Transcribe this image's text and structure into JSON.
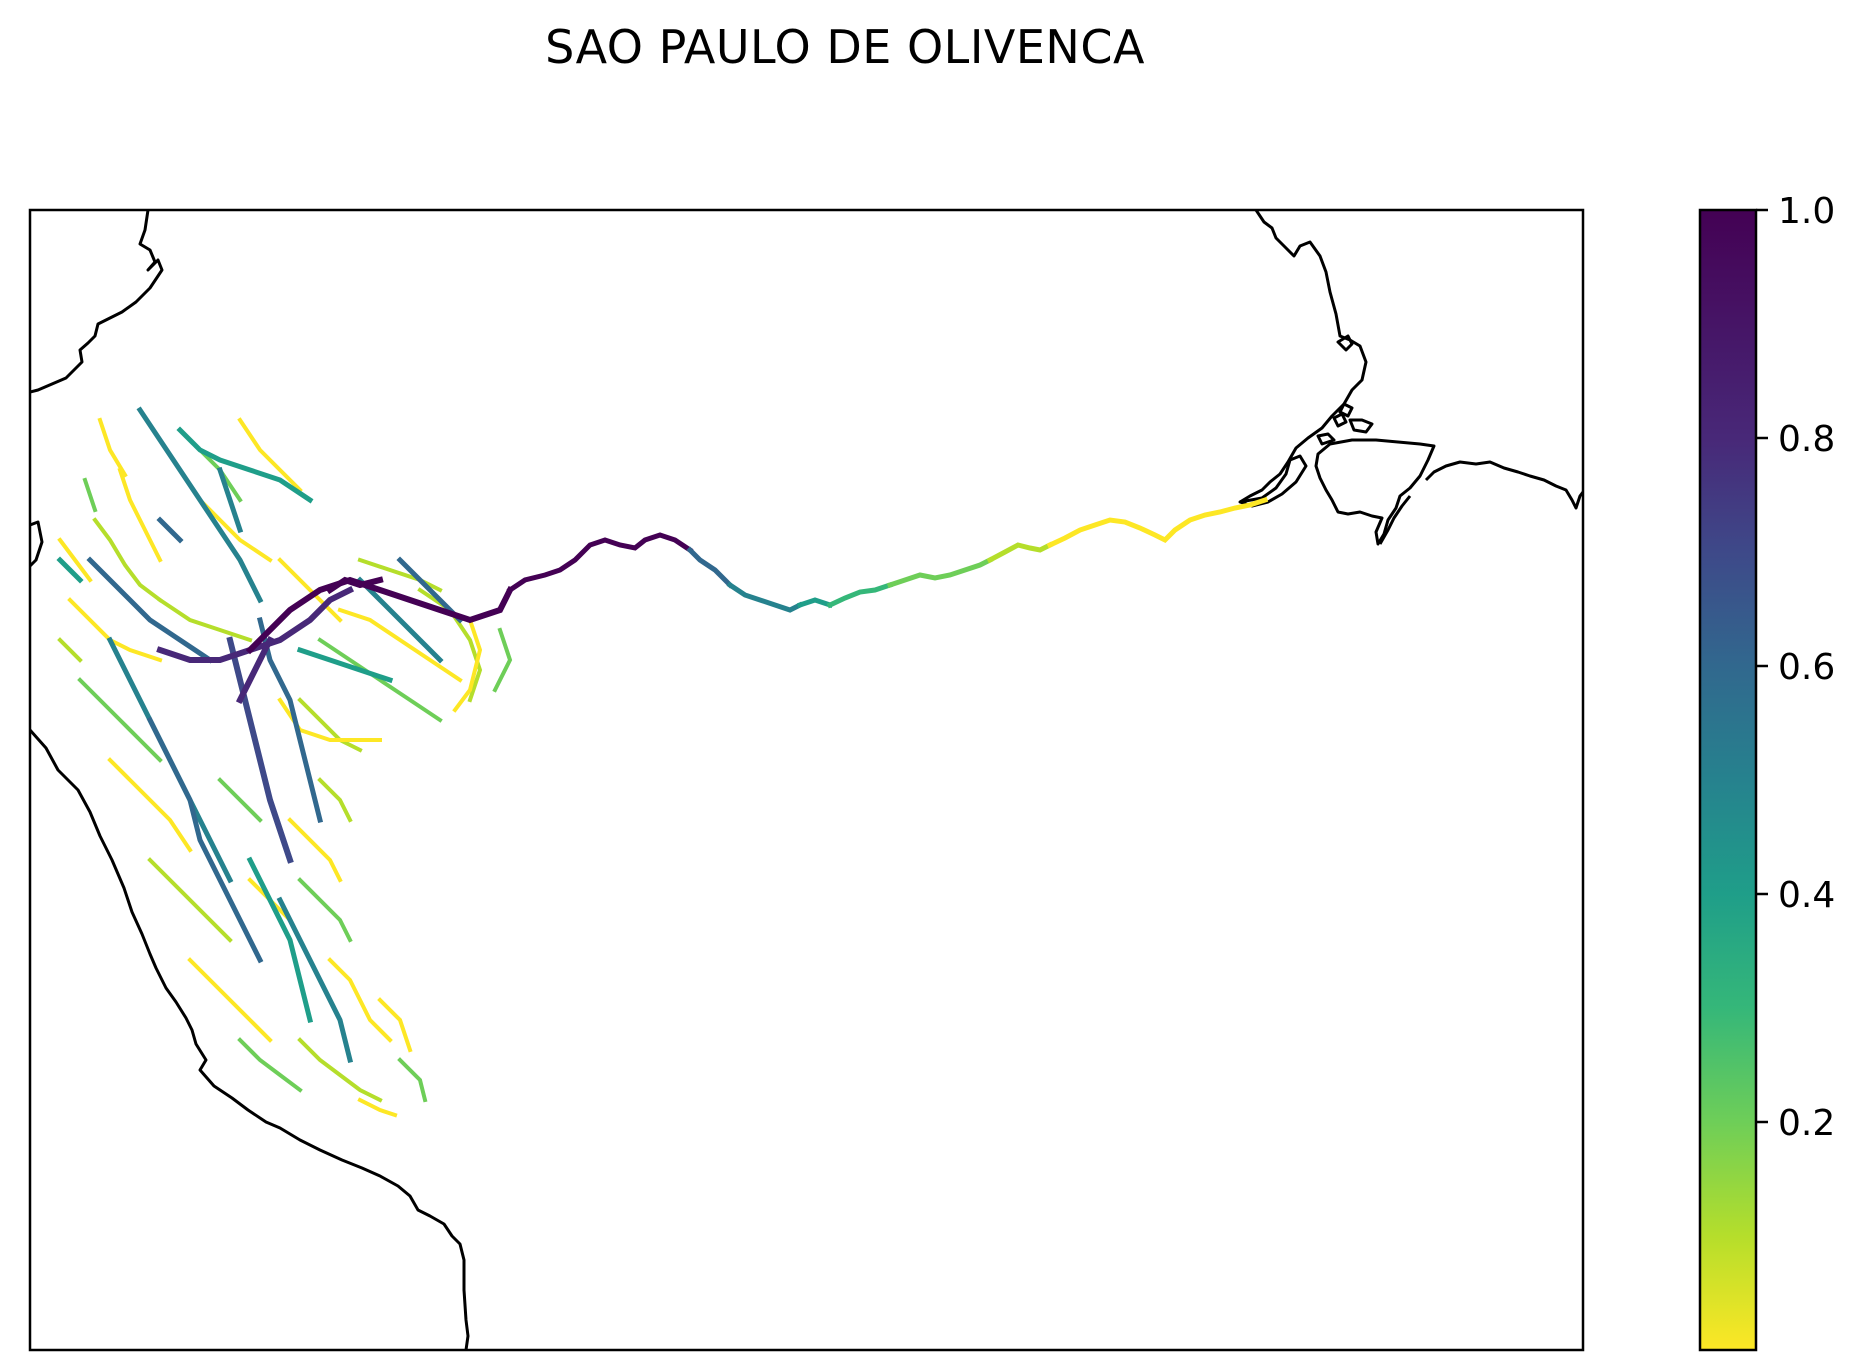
{
  "title": "SAO PAULO DE OLIVENCA",
  "colorbar": {
    "colormap": "viridis (reversed)",
    "range": [
      0.0,
      1.0
    ],
    "ticks": [
      {
        "value": 1.0,
        "label": "1.0"
      },
      {
        "value": 0.8,
        "label": "0.8"
      },
      {
        "value": 0.6,
        "label": "0.6"
      },
      {
        "value": 0.4,
        "label": "0.4"
      },
      {
        "value": 0.2,
        "label": "0.2"
      }
    ],
    "stops": [
      {
        "value": 0.0,
        "color": "#fde725"
      },
      {
        "value": 0.1,
        "color": "#b5de2b"
      },
      {
        "value": 0.2,
        "color": "#6ece58"
      },
      {
        "value": 0.3,
        "color": "#35b779"
      },
      {
        "value": 0.4,
        "color": "#1f9e89"
      },
      {
        "value": 0.5,
        "color": "#26828e"
      },
      {
        "value": 0.6,
        "color": "#31688e"
      },
      {
        "value": 0.7,
        "color": "#3e4989"
      },
      {
        "value": 0.8,
        "color": "#482878"
      },
      {
        "value": 1.0,
        "color": "#440154"
      }
    ]
  },
  "map": {
    "coastline_color": "#000000",
    "background": "#ffffff"
  }
}
